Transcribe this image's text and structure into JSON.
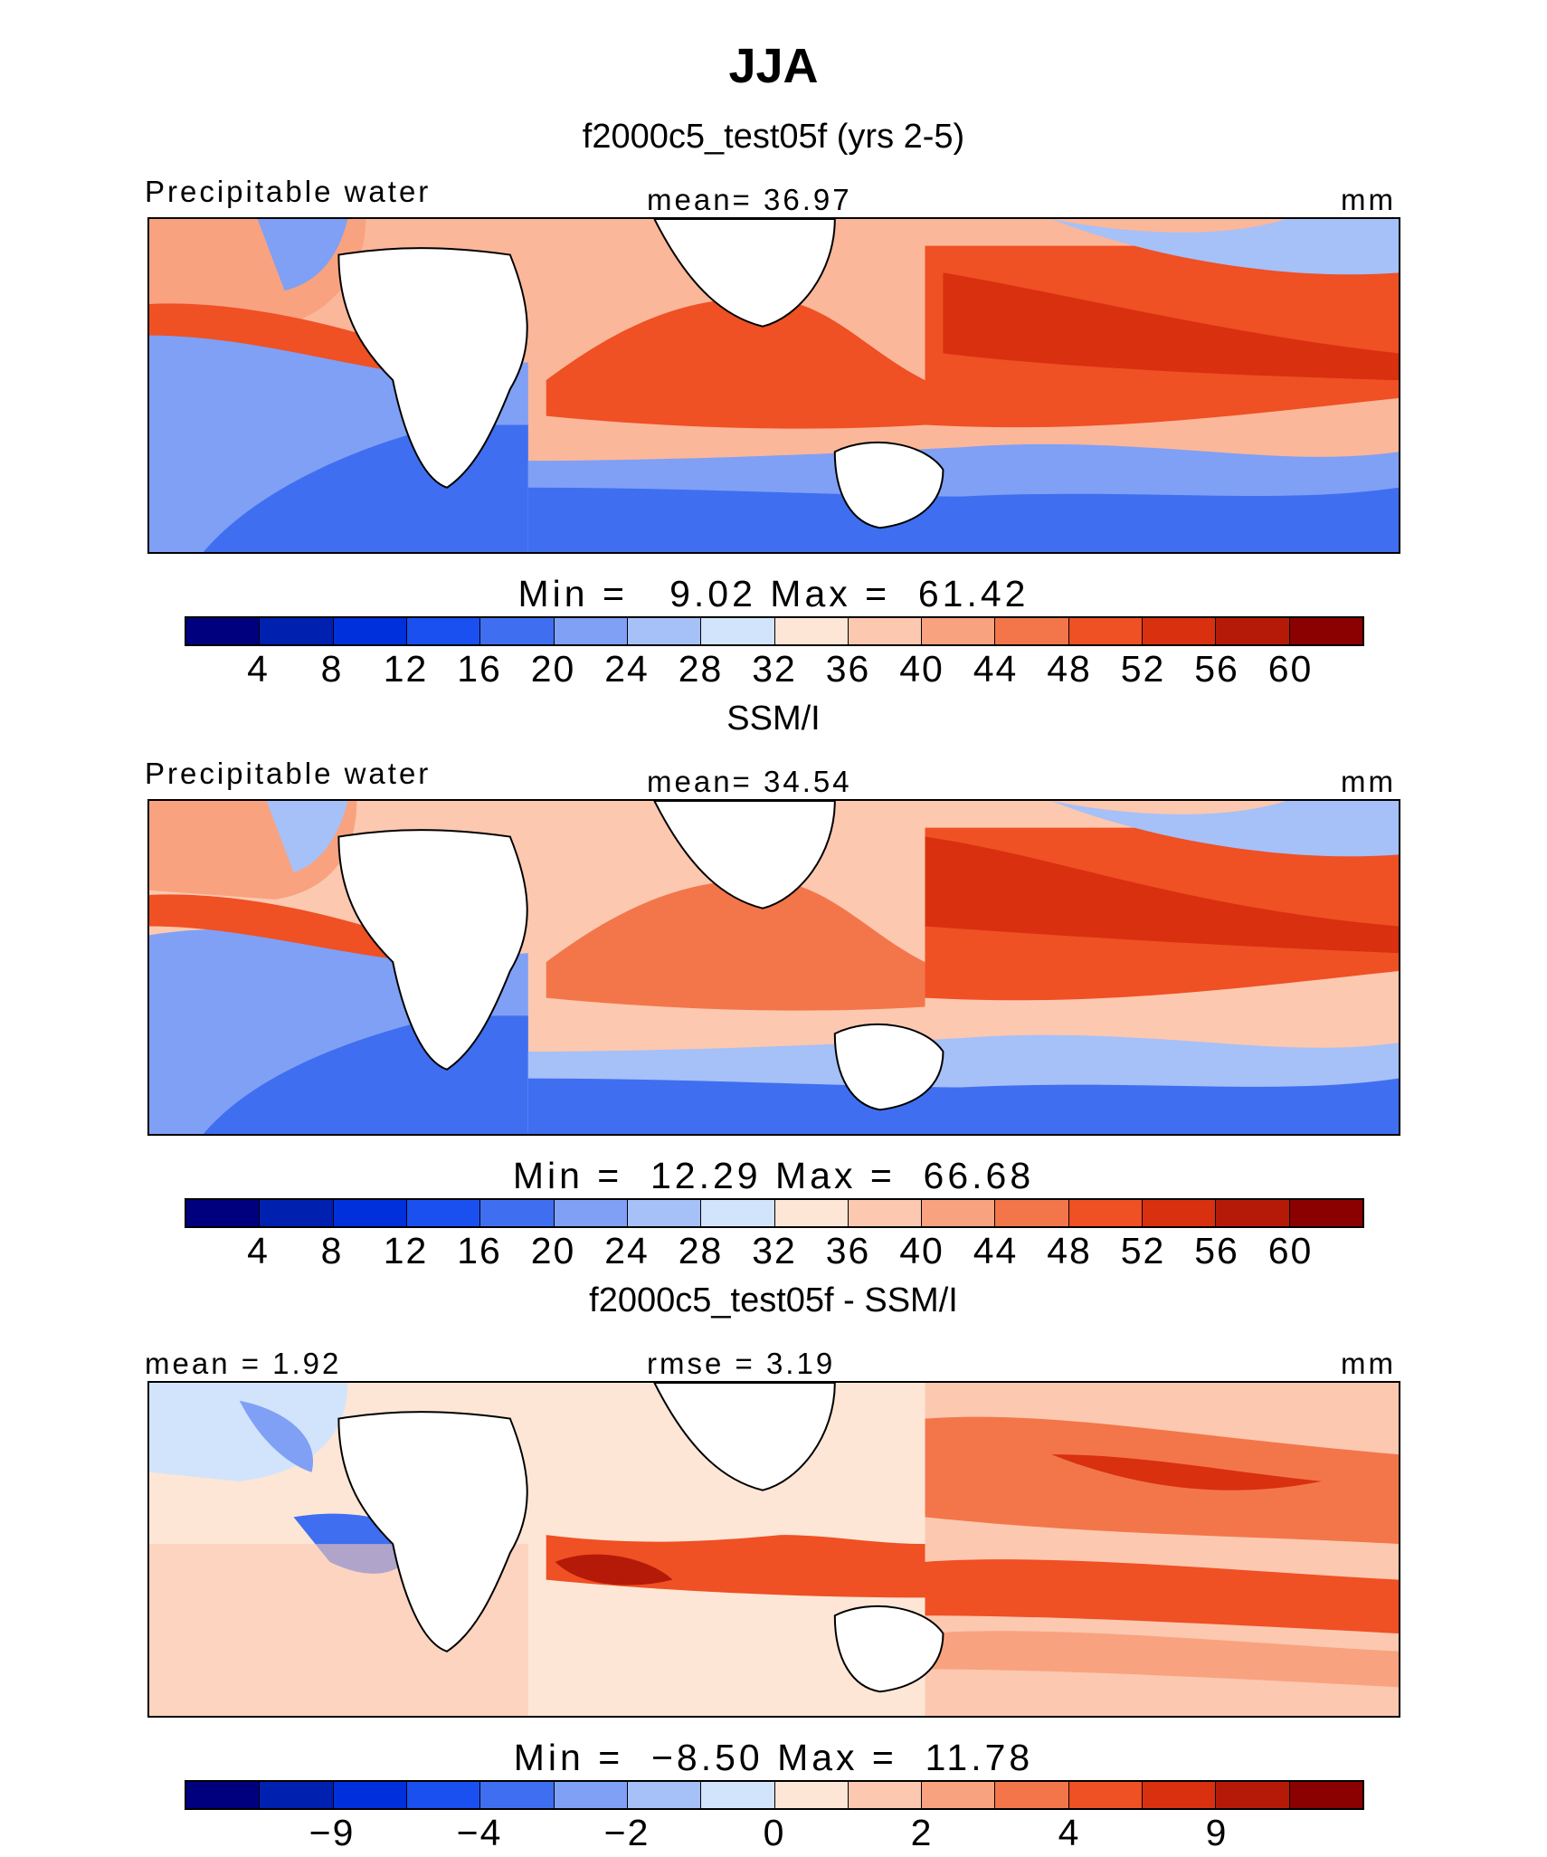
{
  "figure": {
    "title": "JJA"
  },
  "palettes": {
    "abs": [
      "#00007f",
      "#0020b0",
      "#0030dc",
      "#1a4ff0",
      "#3f6ff0",
      "#7fa0f5",
      "#a6c0f8",
      "#d2e4fb",
      "#fde6d6",
      "#fcc8b0",
      "#f9a27f",
      "#f3764a",
      "#ef5024",
      "#d93010",
      "#b51a08",
      "#8b0000"
    ],
    "diff": [
      "#00007f",
      "#0020b0",
      "#0030dc",
      "#1a4ff0",
      "#3f6ff0",
      "#7fa0f5",
      "#a6c0f8",
      "#d2e4fb",
      "#fde6d6",
      "#fcc8b0",
      "#f9a27f",
      "#f3764a",
      "#ef5024",
      "#d93010",
      "#b51a08",
      "#8b0000"
    ]
  },
  "panels": [
    {
      "title": "f2000c5_test05f (yrs 2-5)",
      "left_label": "Precipitable water",
      "center_label": "mean=  36.97",
      "right_label": "mm",
      "minmax": "Min =   9.02 Max =  61.42",
      "ticks": [
        "4",
        "8",
        "12",
        "16",
        "20",
        "24",
        "28",
        "32",
        "36",
        "40",
        "44",
        "48",
        "52",
        "56",
        "60"
      ],
      "palette": "abs"
    },
    {
      "title": "SSM/I",
      "left_label": "Precipitable water",
      "center_label": "mean=  34.54",
      "right_label": "mm",
      "minmax": "Min =  12.29 Max =  66.68",
      "ticks": [
        "4",
        "8",
        "12",
        "16",
        "20",
        "24",
        "28",
        "32",
        "36",
        "40",
        "44",
        "48",
        "52",
        "56",
        "60"
      ],
      "palette": "abs"
    },
    {
      "title": "f2000c5_test05f - SSM/I",
      "left_label": "mean =   1.92",
      "center_label": "rmse =   3.19",
      "right_label": "mm",
      "minmax": "Min =  −8.50 Max =  11.78",
      "ticks": [
        "−9",
        "−4",
        "−2",
        "0",
        "2",
        "4",
        "9"
      ],
      "palette": "diff"
    }
  ],
  "chart_data": [
    {
      "type": "heatmap",
      "title": "f2000c5_test05f (yrs 2-5)",
      "variable": "Precipitable water",
      "units": "mm",
      "mean": 36.97,
      "min": 9.02,
      "max": 61.42,
      "colorbar_levels": [
        4,
        8,
        12,
        16,
        20,
        24,
        28,
        32,
        36,
        40,
        44,
        48,
        52,
        56,
        60
      ]
    },
    {
      "type": "heatmap",
      "title": "SSM/I",
      "variable": "Precipitable water",
      "units": "mm",
      "mean": 34.54,
      "min": 12.29,
      "max": 66.68,
      "colorbar_levels": [
        4,
        8,
        12,
        16,
        20,
        24,
        28,
        32,
        36,
        40,
        44,
        48,
        52,
        56,
        60
      ]
    },
    {
      "type": "heatmap",
      "title": "f2000c5_test05f - SSM/I",
      "units": "mm",
      "mean": 1.92,
      "rmse": 3.19,
      "min": -8.5,
      "max": 11.78,
      "colorbar_levels": [
        -9,
        -4,
        -2,
        0,
        2,
        4,
        9
      ]
    }
  ]
}
